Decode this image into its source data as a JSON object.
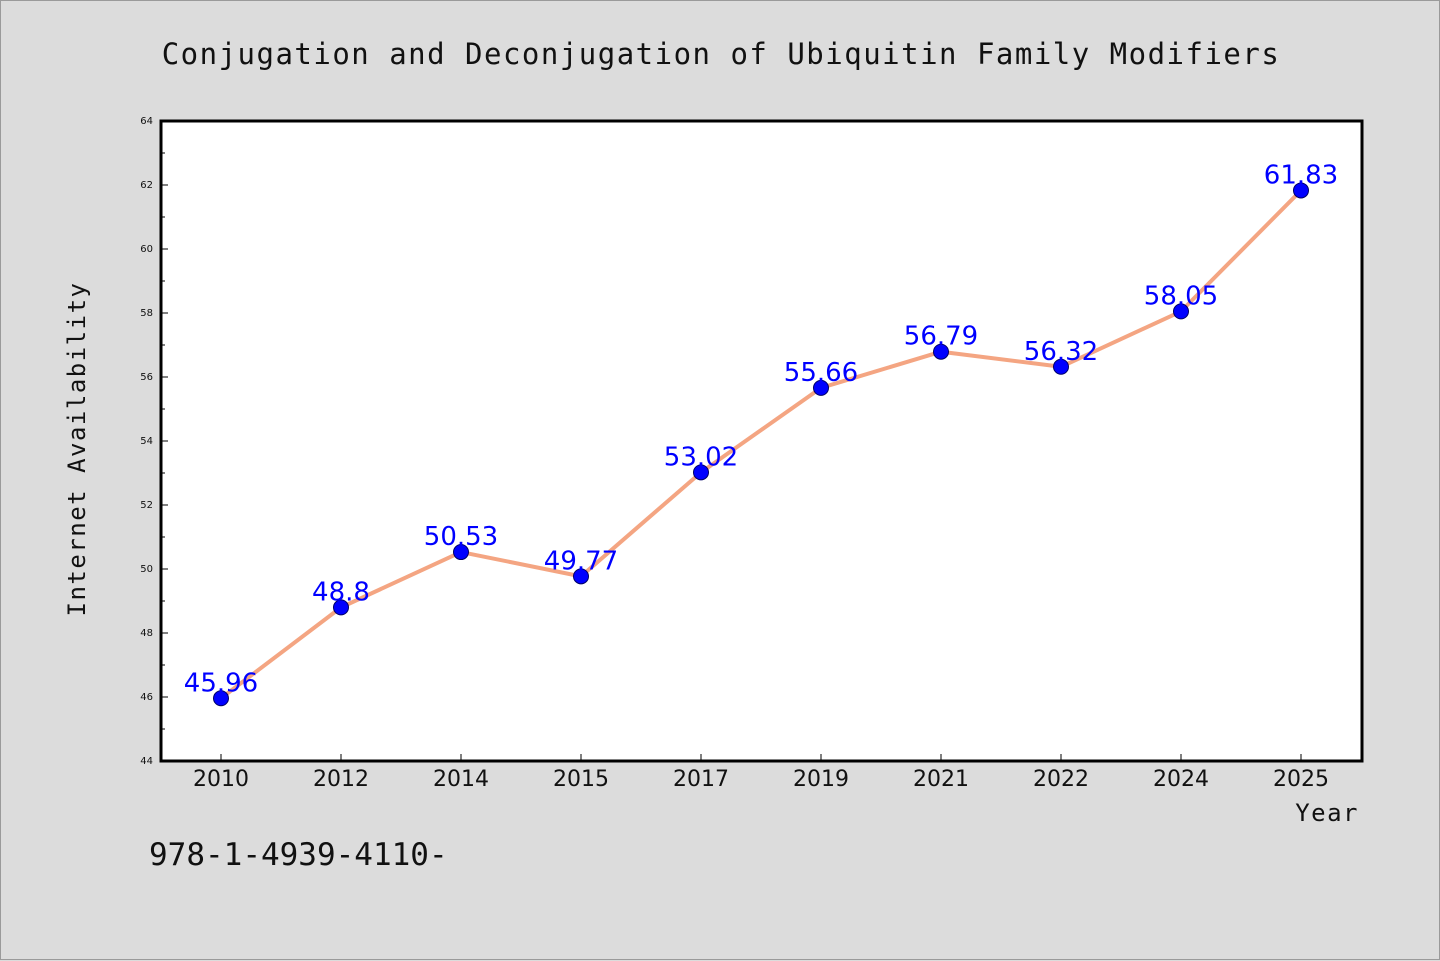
{
  "chart_data": {
    "type": "line",
    "title": "Conjugation and Deconjugation of Ubiquitin Family Modifiers",
    "xlabel": "Year",
    "ylabel": "Internet Availability",
    "categories": [
      "2010",
      "2012",
      "2014",
      "2015",
      "2017",
      "2019",
      "2021",
      "2022",
      "2024",
      "2025"
    ],
    "series": [
      {
        "values": [
          45.96,
          48.8,
          50.53,
          49.77,
          53.02,
          55.66,
          56.79,
          56.32,
          58.05,
          61.83
        ],
        "labels": [
          "45.96",
          "48.8",
          "50.53",
          "49.77",
          "53.02",
          "55.66",
          "56.79",
          "56.32",
          "58.05",
          "61.83"
        ],
        "line_color": "#f4a582",
        "marker_color": "#0000ff"
      }
    ],
    "ylim": [
      44,
      64
    ],
    "yticks": [
      "44",
      "46",
      "48",
      "50",
      "52",
      "54",
      "56",
      "58",
      "60",
      "62",
      "64"
    ],
    "grid": false,
    "legend": "none"
  },
  "footnote": "978-1-4939-4110-"
}
